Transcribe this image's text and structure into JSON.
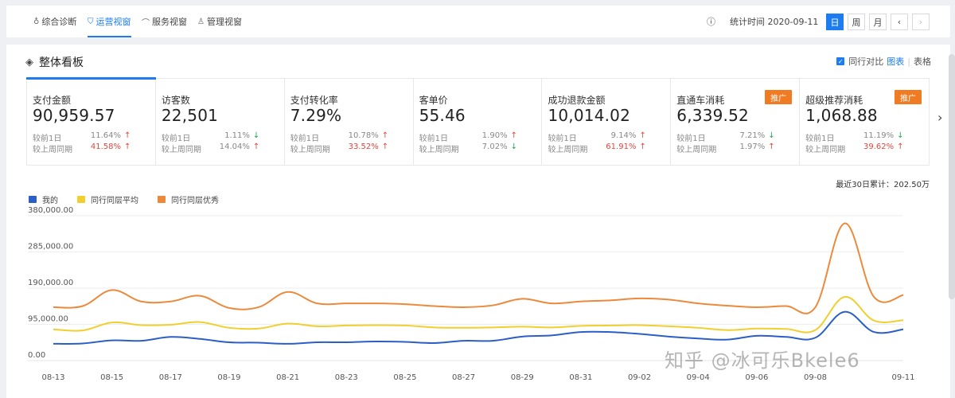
{
  "nav": {
    "tabs": [
      {
        "label": "综合诊断",
        "icon": "location-icon"
      },
      {
        "label": "运营视窗",
        "icon": "shield-icon"
      },
      {
        "label": "服务视窗",
        "icon": "headset-icon"
      },
      {
        "label": "管理视窗",
        "icon": "medal-icon"
      }
    ],
    "stats_time": "统计时间 2020-09-11",
    "period_buttons": [
      "日",
      "周",
      "月"
    ],
    "active_period": "日",
    "prev_label": "‹",
    "next_label": "›"
  },
  "panel": {
    "title": "整体看板",
    "compare_label": "同行对比",
    "view_chart": "图表",
    "view_table": "表格",
    "cumulative": "最近30日累计：202.50万"
  },
  "metrics": [
    {
      "name": "支付金额",
      "value": "90,959.57",
      "tag": "",
      "rows": [
        {
          "label": "较前1日",
          "pct": "11.64%",
          "dir": "up",
          "red": false
        },
        {
          "label": "较上周同期",
          "pct": "41.58%",
          "dir": "up",
          "red": true
        }
      ]
    },
    {
      "name": "访客数",
      "value": "22,501",
      "tag": "",
      "rows": [
        {
          "label": "较前1日",
          "pct": "1.11%",
          "dir": "down",
          "red": false
        },
        {
          "label": "较上周同期",
          "pct": "14.04%",
          "dir": "up",
          "red": false
        }
      ]
    },
    {
      "name": "支付转化率",
      "value": "7.29%",
      "tag": "",
      "rows": [
        {
          "label": "较前1日",
          "pct": "10.78%",
          "dir": "up",
          "red": false
        },
        {
          "label": "较上周同期",
          "pct": "33.52%",
          "dir": "up",
          "red": true
        }
      ]
    },
    {
      "name": "客单价",
      "value": "55.46",
      "tag": "",
      "rows": [
        {
          "label": "较前1日",
          "pct": "1.90%",
          "dir": "up",
          "red": false
        },
        {
          "label": "较上周同期",
          "pct": "7.02%",
          "dir": "down",
          "red": false
        }
      ]
    },
    {
      "name": "成功退款金额",
      "value": "10,014.02",
      "tag": "",
      "rows": [
        {
          "label": "较前1日",
          "pct": "9.14%",
          "dir": "up",
          "red": false
        },
        {
          "label": "较上周同期",
          "pct": "61.91%",
          "dir": "up",
          "red": true
        }
      ]
    },
    {
      "name": "直通车消耗",
      "value": "6,339.52",
      "tag": "推广",
      "rows": [
        {
          "label": "较前1日",
          "pct": "7.21%",
          "dir": "down",
          "red": false
        },
        {
          "label": "较上周同期",
          "pct": "1.97%",
          "dir": "up",
          "red": false
        }
      ]
    },
    {
      "name": "超级推荐消耗",
      "value": "1,068.88",
      "tag": "推广",
      "rows": [
        {
          "label": "较前1日",
          "pct": "11.19%",
          "dir": "down",
          "red": false
        },
        {
          "label": "较上周同期",
          "pct": "39.62%",
          "dir": "up",
          "red": true
        }
      ]
    }
  ],
  "watermark": "知乎 @冰可乐Bkele6",
  "chart_data": {
    "type": "line",
    "x": [
      "08-13",
      "08-14",
      "08-15",
      "08-16",
      "08-17",
      "08-18",
      "08-19",
      "08-20",
      "08-21",
      "08-22",
      "08-23",
      "08-24",
      "08-25",
      "08-26",
      "08-27",
      "08-28",
      "08-29",
      "08-30",
      "08-31",
      "09-01",
      "09-02",
      "09-03",
      "09-04",
      "09-05",
      "09-06",
      "09-07",
      "09-08",
      "09-09",
      "09-10",
      "09-11"
    ],
    "x_ticks": [
      "08-13",
      "08-15",
      "08-17",
      "08-19",
      "08-21",
      "08-23",
      "08-25",
      "08-27",
      "08-29",
      "08-31",
      "09-02",
      "09-04",
      "09-06",
      "09-08",
      "09-11"
    ],
    "y_ticks": [
      "380,000.00",
      "285,000.00",
      "190,000.00",
      "95,000.00",
      "0.00"
    ],
    "ylim": [
      0,
      380000
    ],
    "grid": true,
    "legend_position": "top-left",
    "series": [
      {
        "name": "我的",
        "color": "#2b5fc7",
        "values": [
          44000,
          45000,
          53000,
          52000,
          62000,
          57000,
          48000,
          47000,
          44000,
          48000,
          48000,
          50000,
          49000,
          46000,
          52000,
          52000,
          63000,
          66000,
          75000,
          75000,
          70000,
          63000,
          58000,
          55000,
          65000,
          62000,
          60000,
          128000,
          75000,
          82000
        ]
      },
      {
        "name": "同行同层平均",
        "color": "#f0cf2e",
        "values": [
          82000,
          79000,
          100000,
          93000,
          94000,
          101000,
          86000,
          84000,
          97000,
          90000,
          92000,
          93000,
          92000,
          87000,
          86000,
          87000,
          89000,
          87000,
          91000,
          92000,
          93000,
          90000,
          86000,
          80000,
          84000,
          83000,
          80000,
          167000,
          105000,
          106000
        ]
      },
      {
        "name": "同行同层优秀",
        "color": "#ec8a3c",
        "values": [
          140000,
          143000,
          185000,
          155000,
          155000,
          170000,
          138000,
          140000,
          180000,
          150000,
          150000,
          150000,
          148000,
          143000,
          140000,
          145000,
          162000,
          150000,
          155000,
          158000,
          163000,
          160000,
          150000,
          144000,
          140000,
          143000,
          140000,
          360000,
          167000,
          172000
        ]
      }
    ]
  }
}
